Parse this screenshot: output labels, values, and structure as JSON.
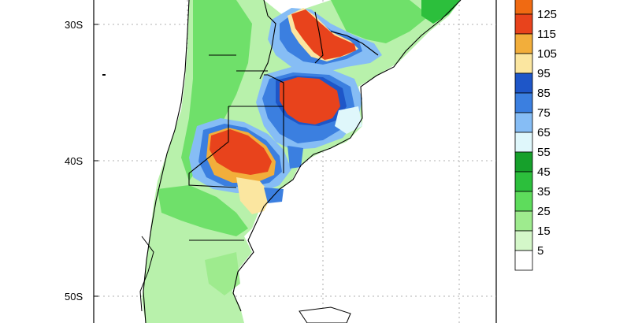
{
  "map": {
    "lat_labels": [
      "30S",
      "40S",
      "50S"
    ]
  },
  "legend": {
    "items": [
      {
        "label": "125",
        "color": "#e8431c"
      },
      {
        "label": "115",
        "color": "#f2ae3b"
      },
      {
        "label": "105",
        "color": "#fbe6a0"
      },
      {
        "label": "95",
        "color": "#1e56c8"
      },
      {
        "label": "85",
        "color": "#3b7fe0"
      },
      {
        "label": "75",
        "color": "#86bdf5"
      },
      {
        "label": "65",
        "color": "#dff7fb"
      },
      {
        "label": "55",
        "color": "#16a02b"
      },
      {
        "label": "45",
        "color": "#2cbf3c"
      },
      {
        "label": "35",
        "color": "#5edc5c"
      },
      {
        "label": "25",
        "color": "#9eeb8e"
      },
      {
        "label": "15",
        "color": "#d4f7c9"
      },
      {
        "label": "5",
        "color": "#ffffff"
      }
    ],
    "top_color": "#f06a12"
  }
}
